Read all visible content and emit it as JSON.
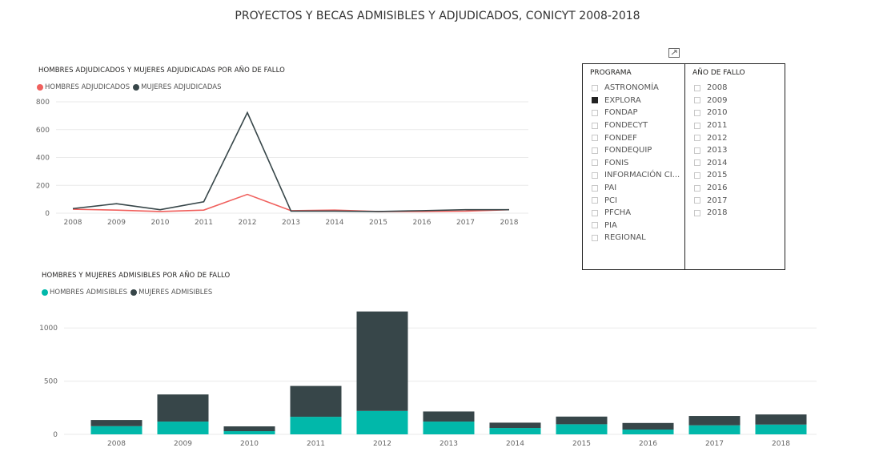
{
  "report": {
    "title": "PROYECTOS Y BECAS ADMISIBLES Y ADJUDICADOS, CONICYT 2008-2018"
  },
  "colors": {
    "men_line": "#F0605D",
    "women_line": "#374649",
    "men_bar": "#01B8AA",
    "women_bar": "#374649",
    "gridline": "#eaeaea",
    "axis_text": "#666666"
  },
  "icons": {
    "focus": "focus-mode-icon"
  },
  "slicers": {
    "programa": {
      "header": "PROGRAMA",
      "items": [
        {
          "label": "ASTRONOMÍA",
          "checked": false
        },
        {
          "label": "EXPLORA",
          "checked": true
        },
        {
          "label": "FONDAP",
          "checked": false
        },
        {
          "label": "FONDECYT",
          "checked": false
        },
        {
          "label": "FONDEF",
          "checked": false
        },
        {
          "label": "FONDEQUIP",
          "checked": false
        },
        {
          "label": "FONIS",
          "checked": false
        },
        {
          "label": "INFORMACIÓN CI...",
          "checked": false
        },
        {
          "label": "PAI",
          "checked": false
        },
        {
          "label": "PCI",
          "checked": false
        },
        {
          "label": "PFCHA",
          "checked": false
        },
        {
          "label": "PIA",
          "checked": false
        },
        {
          "label": "REGIONAL",
          "checked": false
        }
      ]
    },
    "anio": {
      "header": "AÑO DE FALLO",
      "items": [
        {
          "label": "2008",
          "checked": false
        },
        {
          "label": "2009",
          "checked": false
        },
        {
          "label": "2010",
          "checked": false
        },
        {
          "label": "2011",
          "checked": false
        },
        {
          "label": "2012",
          "checked": false
        },
        {
          "label": "2013",
          "checked": false
        },
        {
          "label": "2014",
          "checked": false
        },
        {
          "label": "2015",
          "checked": false
        },
        {
          "label": "2016",
          "checked": false
        },
        {
          "label": "2017",
          "checked": false
        },
        {
          "label": "2018",
          "checked": false
        }
      ]
    }
  },
  "chart_data": [
    {
      "type": "line",
      "title": "HOMBRES ADJUDICADOS Y  MUJERES ADJUDICADAS POR AÑO DE FALLO",
      "x": [
        "2008",
        "2009",
        "2010",
        "2011",
        "2012",
        "2013",
        "2014",
        "2015",
        "2016",
        "2017",
        "2018"
      ],
      "ylim": [
        0,
        800
      ],
      "yticks": [
        0,
        200,
        400,
        600,
        800
      ],
      "grid": true,
      "legend_position": "top-left",
      "series": [
        {
          "name": "HOMBRES ADJUDICADOS",
          "color": "#F0605D",
          "values": [
            28,
            22,
            12,
            22,
            135,
            18,
            22,
            12,
            12,
            15,
            25
          ]
        },
        {
          "name": "MUJERES ADJUDICADAS",
          "color": "#374649",
          "values": [
            33,
            68,
            25,
            82,
            722,
            15,
            15,
            12,
            18,
            25,
            25
          ]
        }
      ]
    },
    {
      "type": "bar",
      "stacked": true,
      "title": "HOMBRES Y MUJERES ADMISIBLES POR AÑO DE FALLO",
      "categories": [
        "2008",
        "2009",
        "2010",
        "2011",
        "2012",
        "2013",
        "2014",
        "2015",
        "2016",
        "2017",
        "2018"
      ],
      "ylim": [
        0,
        1160
      ],
      "yticks": [
        0,
        500,
        1000
      ],
      "grid": true,
      "legend_position": "top-left",
      "series": [
        {
          "name": "HOMBRES ADMISIBLES",
          "color": "#01B8AA",
          "values": [
            77,
            120,
            30,
            165,
            220,
            120,
            60,
            95,
            45,
            85,
            92
          ]
        },
        {
          "name": "MUJERES ADMISIBLES",
          "color": "#374649",
          "values": [
            58,
            255,
            45,
            290,
            935,
            95,
            50,
            72,
            62,
            88,
            95
          ]
        }
      ]
    }
  ]
}
